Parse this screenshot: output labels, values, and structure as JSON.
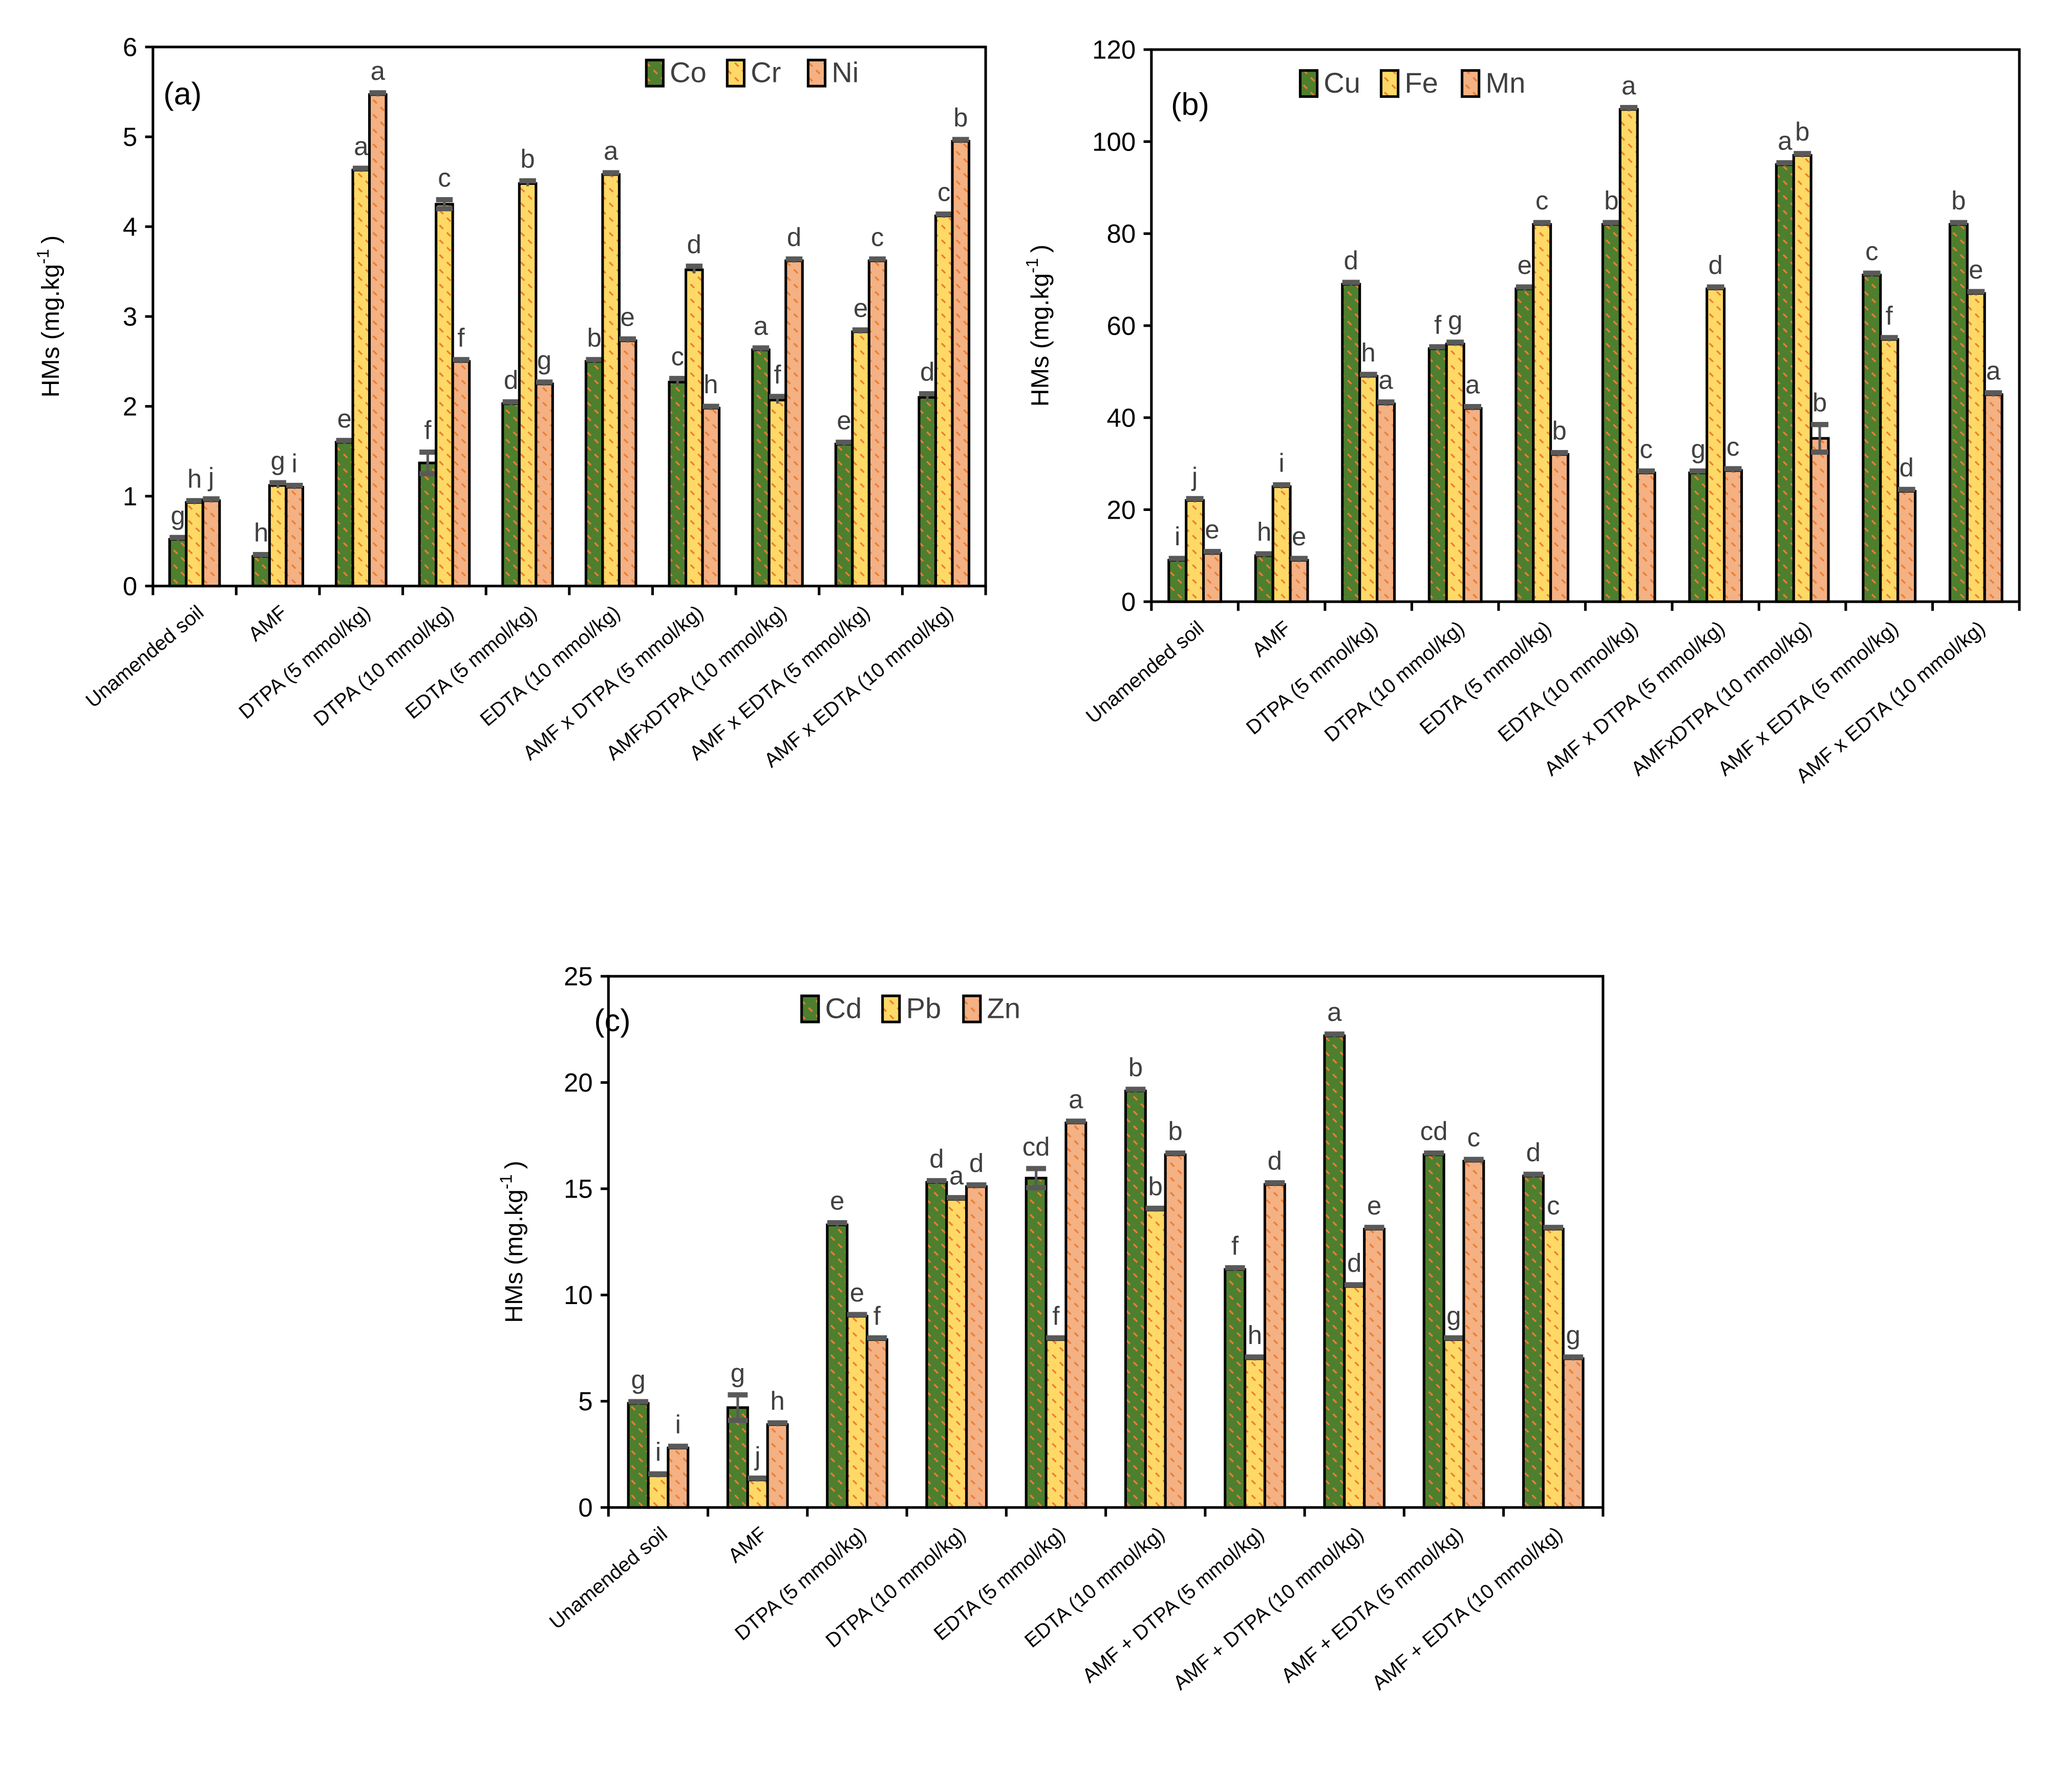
{
  "colors": {
    "s1": "#4e7f2e",
    "s2": "#ffd966",
    "s3": "#f4b183",
    "hatch": "#ed7d31",
    "cap": "#595959"
  },
  "chart_data": [
    {
      "type": "bar",
      "panel": "(a)",
      "ylabel": "HMs (mg.kg",
      "ylabel_sup": "-1",
      "ylabel_end": ")",
      "ylim": [
        0,
        6
      ],
      "ytick_step": 1,
      "yticks": [
        "0",
        "1",
        "2",
        "3",
        "4",
        "5",
        "6"
      ],
      "legend_position": "top-right",
      "categories": [
        "Unamended soil",
        "AMF",
        "DTPA (5 mmol/kg)",
        "DTPA (10 mmol/kg)",
        "EDTA (5 mmol/kg)",
        "EDTA (10 mmol/kg)",
        "AMF x DTPA (5 mmol/kg)",
        "AMFxDTPA (10 mmol/kg)",
        "AMF x EDTA (5 mmol/kg)",
        "AMF x EDTA (10 mmol/kg)"
      ],
      "series": [
        {
          "name": "Co",
          "values": [
            0.52,
            0.33,
            1.6,
            1.37,
            2.03,
            2.5,
            2.27,
            2.63,
            1.58,
            2.1
          ],
          "errors": [
            0.02,
            0.02,
            0.02,
            0.12,
            0.02,
            0.02,
            0.04,
            0.02,
            0.02,
            0.04
          ],
          "letters": [
            "g",
            "h",
            "e",
            "f",
            "d",
            "b",
            "c",
            "a",
            "e",
            "d"
          ]
        },
        {
          "name": "Cr",
          "values": [
            0.93,
            1.12,
            4.63,
            4.25,
            4.48,
            4.58,
            3.52,
            2.07,
            2.83,
            4.12
          ],
          "errors": [
            0.02,
            0.03,
            0.02,
            0.05,
            0.03,
            0.02,
            0.04,
            0.04,
            0.02,
            0.02
          ],
          "letters": [
            "h",
            "g",
            "a",
            "c",
            "b",
            "a",
            "d",
            "f",
            "e",
            "c"
          ]
        },
        {
          "name": "Ni",
          "values": [
            0.95,
            1.1,
            5.47,
            2.5,
            2.25,
            2.73,
            1.98,
            3.62,
            3.62,
            4.95
          ],
          "errors": [
            0.02,
            0.02,
            0.02,
            0.02,
            0.02,
            0.02,
            0.02,
            0.02,
            0.02,
            0.02
          ],
          "letters": [
            "j",
            "i",
            "a",
            "f",
            "g",
            "e",
            "h",
            "d",
            "c",
            "b"
          ]
        }
      ]
    },
    {
      "type": "bar",
      "panel": "(b)",
      "ylabel": "HMs (mg.kg",
      "ylabel_sup": "-1",
      "ylabel_end": ")",
      "ylim": [
        0,
        120
      ],
      "ytick_step": 20,
      "yticks": [
        "0",
        "20",
        "40",
        "60",
        "80",
        "100",
        "120"
      ],
      "legend_position": "top-left",
      "categories": [
        "Unamended soil",
        "AMF",
        "DTPA (5 mmol/kg)",
        "DTPA (10 mmol/kg)",
        "EDTA (5 mmol/kg)",
        "EDTA (10 mmol/kg)",
        "AMF x DTPA (5 mmol/kg)",
        "AMFxDTPA (10 mmol/kg)",
        "AMF x EDTA (5 mmol/kg)",
        "AMF x EDTA (10 mmol/kg)"
      ],
      "series": [
        {
          "name": "Cu",
          "values": [
            9,
            10,
            69,
            55,
            68,
            82,
            28,
            95,
            71,
            82
          ],
          "errors": [
            0.4,
            0.4,
            0.4,
            0.4,
            0.4,
            0.4,
            0.4,
            0.4,
            0.4,
            0.4
          ],
          "letters": [
            "i",
            "h",
            "d",
            "f",
            "e",
            "b",
            "g",
            "a",
            "c",
            "b"
          ]
        },
        {
          "name": "Fe",
          "values": [
            22,
            25,
            49,
            56,
            82,
            107,
            68,
            97,
            57,
            67
          ],
          "errors": [
            0.4,
            0.4,
            0.4,
            0.4,
            0.4,
            0.4,
            0.4,
            0.4,
            0.4,
            0.4
          ],
          "letters": [
            "j",
            "i",
            "h",
            "g",
            "c",
            "a",
            "d",
            "b",
            "f",
            "e"
          ]
        },
        {
          "name": "Mn",
          "values": [
            10.5,
            9,
            43,
            42,
            32,
            28,
            28.5,
            35.5,
            24,
            45
          ],
          "errors": [
            0.4,
            0.4,
            0.4,
            0.4,
            0.4,
            0.4,
            0.4,
            3,
            0.4,
            0.4
          ],
          "letters": [
            "e",
            "e",
            "a",
            "a",
            "b",
            "c",
            "c",
            "b",
            "d",
            "a"
          ]
        }
      ]
    },
    {
      "type": "bar",
      "panel": "(c)",
      "ylabel": "HMs (mg.kg",
      "ylabel_sup": "-1",
      "ylabel_end": ")",
      "ylim": [
        0,
        25
      ],
      "ytick_step": 5,
      "yticks": [
        "0",
        "5",
        "10",
        "15",
        "20",
        "25"
      ],
      "legend_position": "top-left",
      "categories": [
        "Unamended soil",
        "AMF",
        "DTPA (5 mmol/kg)",
        "DTPA (10 mmol/kg)",
        "EDTA (5 mmol/kg)",
        "EDTA (10 mmol/kg)",
        "AMF + DTPA (5 mmol/kg)",
        "AMF + DTPA (10 mmol/kg)",
        "AMF + EDTA (5 mmol/kg)",
        "AMF + EDTA (10 mmol/kg)"
      ],
      "series": [
        {
          "name": "Cd",
          "values": [
            4.9,
            4.7,
            13.3,
            15.3,
            15.5,
            19.6,
            11.2,
            22.2,
            16.6,
            15.6
          ],
          "errors": [
            0.08,
            0.6,
            0.1,
            0.08,
            0.45,
            0.08,
            0.08,
            0.08,
            0.08,
            0.08
          ],
          "letters": [
            "g",
            "g",
            "e",
            "d",
            "cd",
            "b",
            "f",
            "a",
            "cd",
            "d"
          ]
        },
        {
          "name": "Pb",
          "values": [
            1.5,
            1.3,
            9.0,
            14.5,
            7.9,
            14.0,
            7.0,
            10.4,
            7.9,
            13.1
          ],
          "errors": [
            0.08,
            0.08,
            0.08,
            0.08,
            0.08,
            0.08,
            0.08,
            0.08,
            0.08,
            0.08
          ],
          "letters": [
            "i",
            "j",
            "e",
            "a",
            "f",
            "b",
            "h",
            "d",
            "g",
            "c"
          ]
        },
        {
          "name": "Zn",
          "values": [
            2.8,
            3.9,
            7.9,
            15.1,
            18.1,
            16.6,
            15.2,
            13.1,
            16.3,
            7.0
          ],
          "errors": [
            0.08,
            0.08,
            0.08,
            0.08,
            0.08,
            0.08,
            0.08,
            0.08,
            0.08,
            0.08
          ],
          "letters": [
            "i",
            "h",
            "f",
            "d",
            "a",
            "b",
            "d",
            "e",
            "c",
            "g"
          ]
        }
      ]
    }
  ]
}
